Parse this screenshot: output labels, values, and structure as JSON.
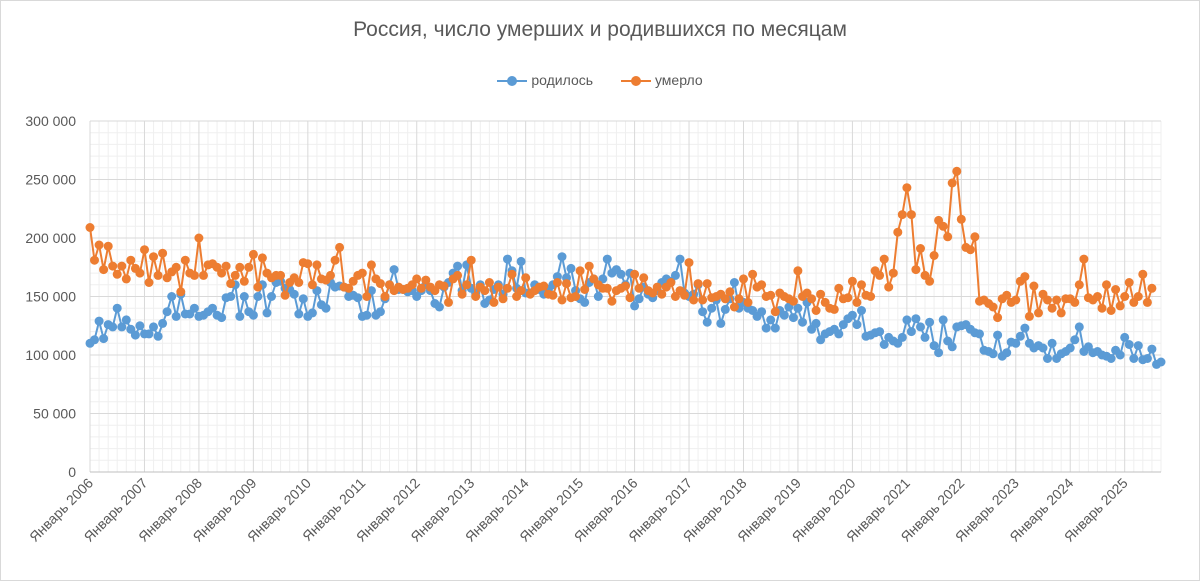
{
  "colors": {
    "births": "#5b9bd5",
    "deaths": "#ed7d31",
    "grid_major": "#d9d9d9",
    "grid_minor": "#efefef",
    "text": "#595959"
  },
  "chart_data": {
    "type": "line",
    "title": "Россия, число умерших и родившихся по месяцам",
    "xlabel": "",
    "ylabel": "",
    "ylim": [
      0,
      300000
    ],
    "y_ticks": [
      0,
      50000,
      100000,
      150000,
      200000,
      250000,
      300000
    ],
    "y_tick_labels": [
      "0",
      "50 000",
      "100 000",
      "150 000",
      "200 000",
      "250 000",
      "300 000"
    ],
    "x_start": "Январь 2006",
    "x_tick_labels": [
      "Январь 2006",
      "Январь 2007",
      "Январь 2008",
      "Январь 2009",
      "Январь 2010",
      "Январь 2011",
      "Январь 2012",
      "Январь 2013",
      "Январь 2014",
      "Январь 2015",
      "Январь 2016",
      "Январь 2017",
      "Январь 2018",
      "Январь 2019",
      "Январь 2020",
      "Январь 2021",
      "Январь 2022",
      "Январь 2023",
      "Январь 2024",
      "Январь 2025"
    ],
    "legend_position": "top-center",
    "series": [
      {
        "name": "родилось",
        "color": "#5b9bd5",
        "values": [
          110000,
          113000,
          129000,
          114000,
          126000,
          124000,
          140000,
          124000,
          130000,
          122000,
          117000,
          125000,
          118000,
          118000,
          124000,
          116000,
          127000,
          137000,
          150000,
          133000,
          152000,
          135000,
          135000,
          140000,
          133000,
          134000,
          137000,
          140000,
          134000,
          132000,
          149000,
          150000,
          160000,
          133000,
          150000,
          137000,
          134000,
          150000,
          160000,
          136000,
          150000,
          162000,
          163000,
          157000,
          156000,
          152000,
          135000,
          148000,
          133000,
          136000,
          155000,
          143000,
          140000,
          162000,
          158000,
          159000,
          158000,
          150000,
          151000,
          149000,
          133000,
          134000,
          155000,
          134000,
          137000,
          148000,
          160000,
          173000,
          156000,
          156000,
          154000,
          155000,
          150000,
          155000,
          160000,
          155000,
          144000,
          141000,
          158000,
          162000,
          170000,
          176000,
          155000,
          177000,
          157000,
          153000,
          160000,
          144000,
          147000,
          156000,
          160000,
          152000,
          182000,
          172000,
          157000,
          180000,
          153000,
          153000,
          160000,
          156000,
          152000,
          156000,
          160000,
          167000,
          184000,
          166000,
          174000,
          155000,
          148000,
          145000,
          162000,
          165000,
          150000,
          165000,
          182000,
          170000,
          173000,
          169000,
          160000,
          170000,
          142000,
          148000,
          158000,
          152000,
          149000,
          155000,
          162000,
          165000,
          163000,
          168000,
          182000,
          153000,
          150000,
          152000,
          160000,
          137000,
          128000,
          140000,
          147000,
          127000,
          139000,
          148000,
          162000,
          140000,
          145000,
          140000,
          138000,
          133000,
          137000,
          123000,
          130000,
          123000,
          138000,
          134000,
          141000,
          132000,
          140000,
          128000,
          145000,
          122000,
          127000,
          113000,
          118000,
          120000,
          122000,
          118000,
          126000,
          131000,
          134000,
          126000,
          138000,
          116000,
          117000,
          119000,
          120000,
          109000,
          115000,
          112000,
          110000,
          115000,
          130000,
          120000,
          131000,
          124000,
          115000,
          128000,
          108000,
          102000,
          130000,
          112000,
          107000,
          124000,
          125000,
          126000,
          122000,
          119000,
          118000,
          104000,
          103000,
          101000,
          117000,
          99000,
          102000,
          111000,
          110000,
          116000,
          123000,
          110000,
          106000,
          108000,
          106000,
          97000,
          110000,
          97000,
          101000,
          103000,
          106000,
          113000,
          124000,
          103000,
          107000,
          102000,
          103000,
          100000,
          99000,
          97000,
          104000,
          100000,
          115000,
          109000,
          97000,
          108000,
          96000,
          97000,
          105000,
          92000,
          94000
        ]
      },
      {
        "name": "умерло",
        "color": "#ed7d31",
        "values": [
          209000,
          181000,
          194000,
          173000,
          193000,
          176000,
          169000,
          176000,
          165000,
          181000,
          174000,
          170000,
          190000,
          162000,
          184000,
          168000,
          187000,
          166000,
          171000,
          175000,
          154000,
          181000,
          170000,
          168000,
          200000,
          168000,
          177000,
          178000,
          175000,
          170000,
          176000,
          161000,
          168000,
          175000,
          163000,
          175000,
          186000,
          158000,
          183000,
          170000,
          166000,
          168000,
          168000,
          151000,
          162000,
          166000,
          162000,
          179000,
          178000,
          160000,
          177000,
          165000,
          164000,
          168000,
          181000,
          192000,
          158000,
          157000,
          163000,
          168000,
          170000,
          150000,
          177000,
          165000,
          161000,
          150000,
          160000,
          155000,
          158000,
          156000,
          157000,
          160000,
          165000,
          157000,
          164000,
          158000,
          155000,
          160000,
          159000,
          145000,
          165000,
          168000,
          152000,
          160000,
          181000,
          150000,
          158000,
          155000,
          162000,
          145000,
          158000,
          148000,
          157000,
          169000,
          150000,
          155000,
          166000,
          152000,
          155000,
          158000,
          159000,
          152000,
          151000,
          162000,
          147000,
          161000,
          149000,
          150000,
          172000,
          156000,
          176000,
          165000,
          160000,
          157000,
          157000,
          146000,
          155000,
          157000,
          159000,
          149000,
          169000,
          157000,
          166000,
          155000,
          153000,
          158000,
          152000,
          158000,
          162000,
          150000,
          155000,
          151000,
          179000,
          147000,
          161000,
          147000,
          161000,
          149000,
          150000,
          152000,
          148000,
          154000,
          141000,
          148000,
          165000,
          145000,
          169000,
          158000,
          160000,
          150000,
          151000,
          137000,
          153000,
          150000,
          148000,
          146000,
          172000,
          150000,
          153000,
          148000,
          138000,
          152000,
          145000,
          140000,
          139000,
          157000,
          148000,
          149000,
          163000,
          145000,
          160000,
          151000,
          150000,
          172000,
          168000,
          182000,
          158000,
          170000,
          205000,
          220000,
          243000,
          220000,
          173000,
          191000,
          168000,
          163000,
          185000,
          215000,
          210000,
          201000,
          247000,
          257000,
          216000,
          192000,
          190000,
          201000,
          146000,
          147000,
          144000,
          141000,
          132000,
          148000,
          151000,
          145000,
          147000,
          163000,
          167000,
          133000,
          159000,
          136000,
          152000,
          147000,
          140000,
          147000,
          136000,
          148000,
          148000,
          145000,
          160000,
          182000,
          149000,
          147000,
          150000,
          140000,
          160000,
          138000,
          156000,
          142000,
          150000,
          162000,
          145000,
          150000,
          169000,
          145000,
          157000
        ]
      }
    ]
  }
}
